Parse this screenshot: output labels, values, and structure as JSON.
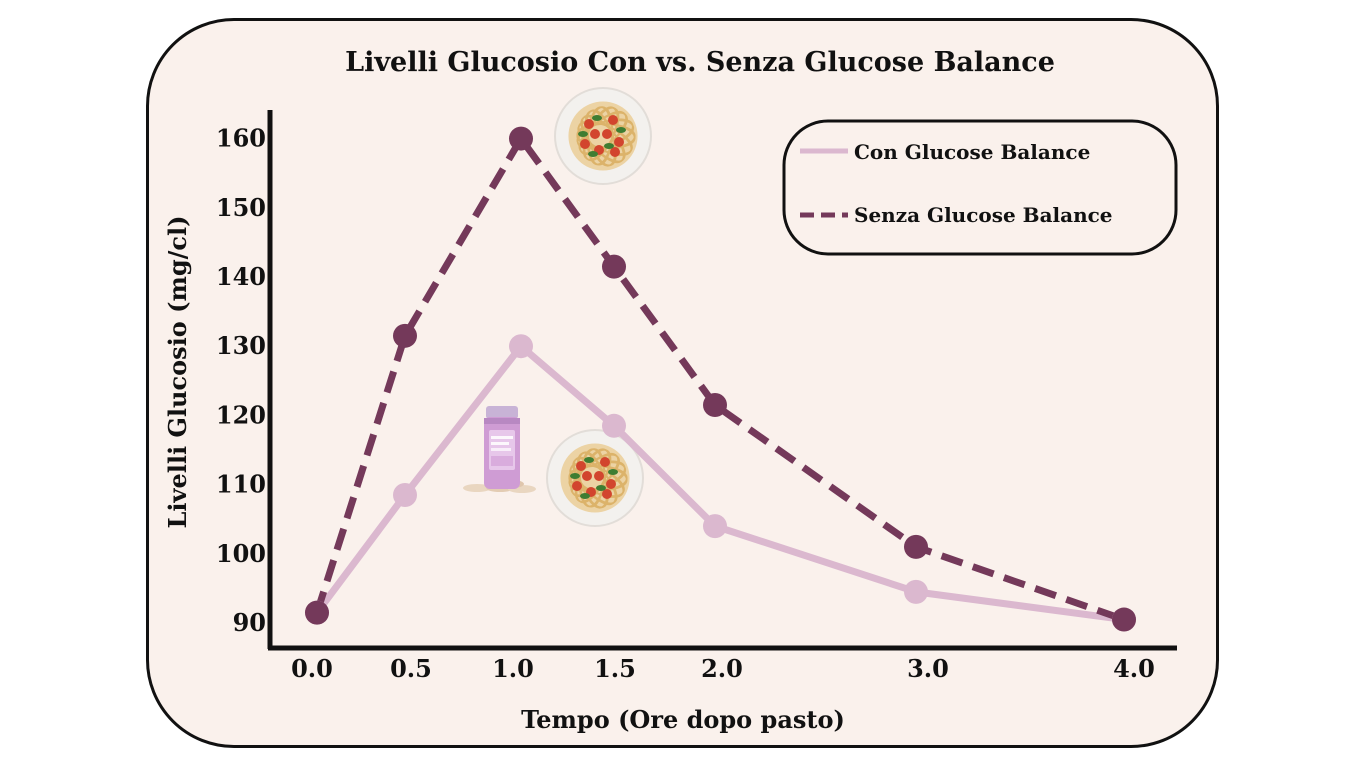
{
  "chart_data": {
    "type": "line",
    "title": "Livelli Glucosio Con vs. Senza Glucose Balance",
    "xlabel": "Tempo (Ore dopo pasto)",
    "ylabel": "Livelli Glucosio (mg/cl)",
    "ylim": [
      88,
      163
    ],
    "y_ticks": [
      "90",
      "100",
      "110",
      "120",
      "130",
      "140",
      "150",
      "160"
    ],
    "x_ticks": [
      "0.0",
      "0.5",
      "1.0",
      "1.5",
      "2.0",
      "3.0",
      "4.0"
    ],
    "series": [
      {
        "name": "Con Glucose Balance",
        "style": "solid",
        "color": "#dbb8cf",
        "values": [
          91.5,
          108.5,
          130,
          118.5,
          104,
          94.5,
          90.5
        ]
      },
      {
        "name": "Senza Glucose Balance",
        "style": "dashed",
        "color": "#74395a",
        "values": [
          91.5,
          131.5,
          160,
          141.5,
          121.5,
          101,
          90.5
        ]
      }
    ],
    "legend_position": "top-right"
  },
  "colors": {
    "card_background": "#faf1ec",
    "con": "#dbb8cf",
    "senza": "#74395a",
    "axis": "#111111"
  },
  "icons": {
    "pasta_top": "pasta-plate-icon",
    "pasta_bottom": "pasta-plate-icon",
    "supplement": "supplement-bottle-icon"
  }
}
